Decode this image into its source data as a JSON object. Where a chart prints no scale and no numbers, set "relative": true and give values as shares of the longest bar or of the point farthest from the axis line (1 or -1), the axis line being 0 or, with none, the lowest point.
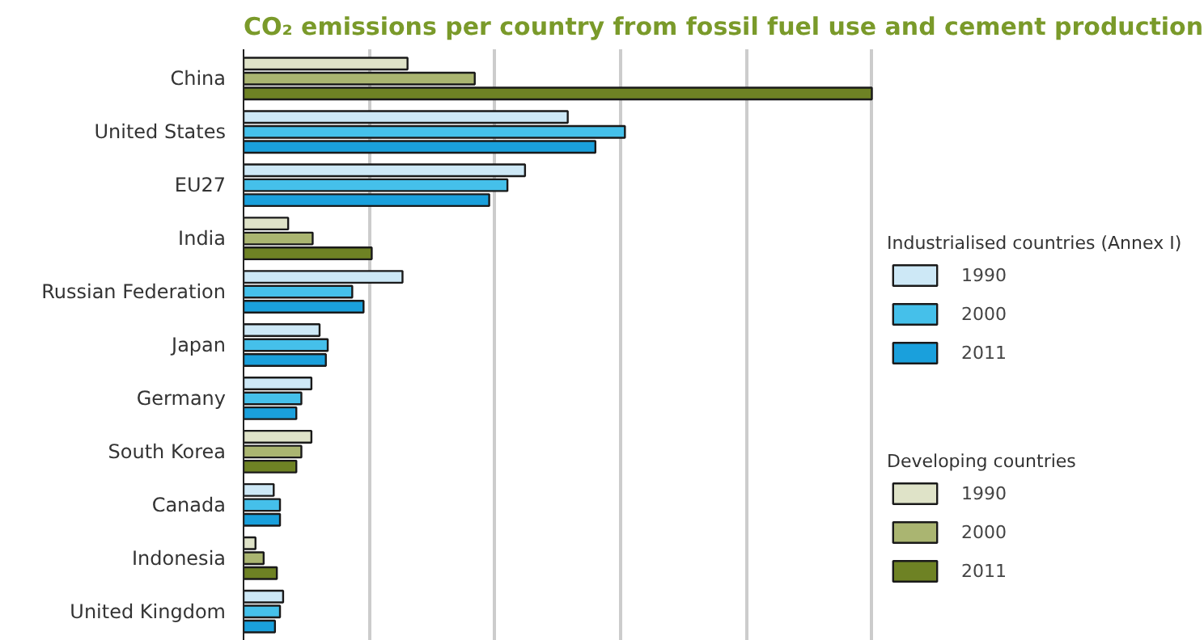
{
  "chart_data": {
    "type": "bar",
    "orientation": "horizontal",
    "relative": true,
    "title": "CO₂ emissions per country from fossil fuel use and cement production",
    "categories": [
      "China",
      "United States",
      "EU27",
      "India",
      "Russian Federation",
      "Japan",
      "Germany",
      "South Korea",
      "Canada",
      "Indonesia",
      "United Kingdom"
    ],
    "annotations": [
      "Industrialised countries (Annex I)",
      "Developing countries"
    ],
    "series": [
      {
        "name": "1990",
        "color": "#cde8f6",
        "values": [
          null,
          0.516,
          0.448,
          null,
          0.253,
          0.121,
          0.108,
          null,
          0.048,
          null,
          0.063
        ]
      },
      {
        "name": "2000",
        "color": "#45c0ea",
        "values": [
          null,
          0.607,
          0.42,
          null,
          0.173,
          0.134,
          0.092,
          null,
          0.058,
          null,
          0.058
        ]
      },
      {
        "name": "2011",
        "color": "#1aa0dc",
        "values": [
          null,
          0.56,
          0.391,
          null,
          0.191,
          0.131,
          0.084,
          null,
          0.058,
          null,
          0.05
        ]
      },
      {
        "name": "1990",
        "color": "#dfe3c8",
        "values": [
          0.261,
          null,
          null,
          0.071,
          null,
          null,
          null,
          0.108,
          null,
          0.019,
          null
        ]
      },
      {
        "name": "2000",
        "color": "#aab571",
        "values": [
          0.368,
          null,
          null,
          0.11,
          null,
          null,
          null,
          0.092,
          null,
          0.032,
          null
        ]
      },
      {
        "name": "2011",
        "color": "#6e8224",
        "values": [
          1,
          null,
          null,
          0.204,
          null,
          null,
          null,
          0.084,
          null,
          0.053,
          null
        ]
      }
    ],
    "grid": "x",
    "legend": "right"
  }
}
